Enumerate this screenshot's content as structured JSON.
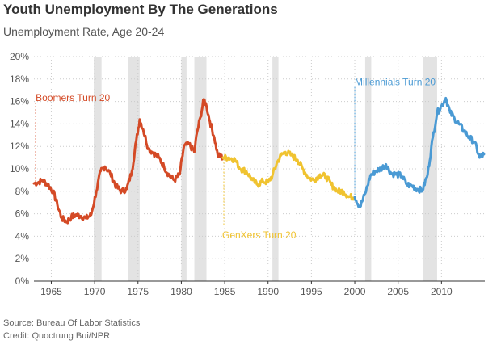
{
  "header": {
    "title": "Youth Unemployment By The Generations",
    "subtitle": "Unemployment Rate, Age 20-24"
  },
  "footer": {
    "source": "Source: Bureau Of Labor Statistics",
    "credit": "Credit: Quoctrung Bui/NPR"
  },
  "colors": {
    "boomers": "#d44a26",
    "genx": "#f0c330",
    "millennials": "#4a9ad4",
    "recession": "#e3e3e3",
    "grid": "#cccccc",
    "axis": "#333333"
  },
  "chart_data": {
    "type": "line",
    "title": "Youth Unemployment By The Generations",
    "subtitle": "Unemployment Rate, Age 20-24",
    "xlabel": "",
    "ylabel": "",
    "xlim": [
      1963,
      2015
    ],
    "ylim": [
      0,
      20
    ],
    "grid": true,
    "x_ticks": [
      1965,
      1970,
      1975,
      1980,
      1985,
      1990,
      1995,
      2000,
      2005,
      2010
    ],
    "y_ticks": [
      {
        "value": 0,
        "label": "0%"
      },
      {
        "value": 2,
        "label": "2%"
      },
      {
        "value": 4,
        "label": "4%"
      },
      {
        "value": 6,
        "label": "6%"
      },
      {
        "value": 8,
        "label": "8%"
      },
      {
        "value": 10,
        "label": "10%"
      },
      {
        "value": 12,
        "label": "12%"
      },
      {
        "value": 14,
        "label": "14%"
      },
      {
        "value": 16,
        "label": "16%"
      },
      {
        "value": 18,
        "label": "18%"
      },
      {
        "value": 20,
        "label": "20%"
      }
    ],
    "recessions": [
      [
        1969.9,
        1970.8
      ],
      [
        1973.9,
        1975.2
      ],
      [
        1980.0,
        1980.6
      ],
      [
        1981.5,
        1982.9
      ],
      [
        1990.5,
        1991.2
      ],
      [
        2001.2,
        2001.9
      ],
      [
        2007.9,
        2009.5
      ]
    ],
    "series": [
      {
        "key": "boomers",
        "x": [
          1963.0,
          1963.5,
          1964.0,
          1964.6,
          1965.2,
          1965.7,
          1966.2,
          1966.8,
          1967.3,
          1967.8,
          1968.4,
          1969.0,
          1969.6,
          1970.2,
          1970.7,
          1971.2,
          1971.8,
          1972.5,
          1973.1,
          1973.7,
          1974.3,
          1974.8,
          1975.2,
          1975.6,
          1976.2,
          1976.8,
          1977.4,
          1978.0,
          1978.6,
          1979.2,
          1979.8,
          1980.3,
          1980.9,
          1981.5,
          1981.8,
          1982.2,
          1982.6,
          1982.9,
          1983.3,
          1983.8,
          1984.2,
          1984.8
        ],
        "y": [
          8.7,
          8.8,
          9.0,
          8.6,
          8.0,
          6.8,
          5.6,
          5.3,
          5.7,
          5.9,
          5.8,
          5.6,
          5.9,
          8.0,
          9.8,
          10.2,
          9.6,
          8.4,
          8.0,
          8.2,
          9.8,
          12.5,
          14.4,
          13.5,
          11.8,
          11.4,
          11.0,
          10.2,
          9.4,
          9.0,
          9.5,
          12.0,
          12.2,
          11.5,
          13.2,
          14.6,
          16.2,
          15.6,
          14.2,
          12.8,
          11.2,
          11.0
        ]
      },
      {
        "key": "genx",
        "x": [
          1984.8,
          1985.5,
          1986.2,
          1986.8,
          1987.5,
          1988.2,
          1988.8,
          1989.4,
          1990.0,
          1990.5,
          1991.0,
          1991.5,
          1992.0,
          1992.7,
          1993.4,
          1994.0,
          1994.7,
          1995.3,
          1996.0,
          1996.7,
          1997.3,
          1998.0,
          1998.7,
          1999.3,
          2000.0
        ],
        "y": [
          11.0,
          11.0,
          10.8,
          10.0,
          9.8,
          9.0,
          8.6,
          8.9,
          8.8,
          9.4,
          10.5,
          11.2,
          11.5,
          11.2,
          10.8,
          10.0,
          9.2,
          9.0,
          9.5,
          9.3,
          8.6,
          8.0,
          8.0,
          7.5,
          7.5
        ]
      },
      {
        "key": "millennials",
        "x": [
          2000.0,
          2000.6,
          2001.2,
          2001.8,
          2002.4,
          2003.0,
          2003.6,
          2004.2,
          2004.8,
          2005.4,
          2006.0,
          2006.6,
          2007.2,
          2007.8,
          2008.4,
          2009.0,
          2009.5,
          2010.0,
          2010.5,
          2011.0,
          2011.5,
          2012.0,
          2012.6,
          2013.2,
          2013.8,
          2014.4,
          2014.9
        ],
        "y": [
          7.5,
          6.6,
          7.8,
          9.4,
          9.8,
          10.0,
          10.4,
          9.6,
          9.5,
          9.4,
          8.6,
          8.5,
          8.2,
          8.1,
          9.5,
          12.8,
          15.0,
          15.6,
          16.3,
          15.0,
          14.5,
          14.0,
          13.4,
          12.8,
          12.4,
          11.0,
          11.3
        ]
      }
    ],
    "annotations": [
      {
        "key": "boomers",
        "text": "Boomers Turn 20",
        "x": 1963.2,
        "y_top": 15.9,
        "y_bottom": 8.9
      },
      {
        "key": "genx",
        "text": "GenXers Turn 20",
        "x": 1984.9,
        "y_top": 10.9,
        "y_bottom": 4.9
      },
      {
        "key": "millennials",
        "text": "Millennials Turn 20",
        "x": 2000.0,
        "y_top": 17.3,
        "y_bottom": 7.7
      }
    ]
  }
}
